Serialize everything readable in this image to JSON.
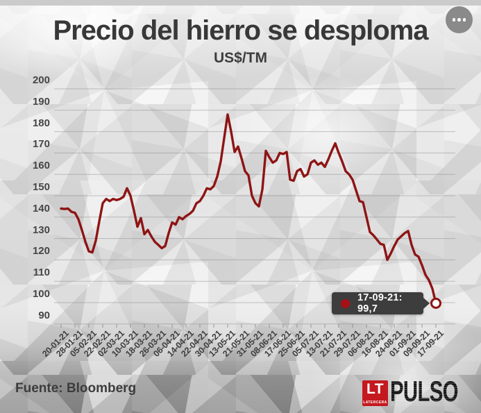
{
  "header": {
    "title": "Precio del hierro se desploma",
    "subtitle": "US$/TM"
  },
  "icons": {
    "menu": "ellipsis"
  },
  "tooltip": {
    "label": "17-09-21: 99,7"
  },
  "footer": {
    "source": "Fuente: Bloomberg",
    "logo_lt": "LT",
    "logo_latercera": "LATERCERA",
    "logo_pulso": "PULSO"
  },
  "chart_data": {
    "type": "line",
    "title": "Precio del hierro se desploma",
    "ylabel": "US$/TM",
    "xlabel": "",
    "grid": true,
    "ylim": [
      90,
      200
    ],
    "y_ticks": [
      200,
      190,
      180,
      170,
      160,
      150,
      140,
      130,
      120,
      110,
      100,
      90
    ],
    "x_labels": [
      "20-01-21",
      "28-01-21",
      "05-02-21",
      "22-02-21",
      "02-03-21",
      "10-03-21",
      "18-03-21",
      "26-03-21",
      "06-04-21",
      "14-04-21",
      "22-04-21",
      "30-04-21",
      "13-05-21",
      "21-05-21",
      "31-05-21",
      "08-06-21",
      "17-06-21",
      "25-06-21",
      "05-07-21",
      "13-07-21",
      "21-07-21",
      "29-07-21",
      "06-08-21",
      "16-08-21",
      "24-08-21",
      "01-09-21",
      "09-09-21",
      "17-09-21"
    ],
    "series": [
      {
        "name": "Precio del hierro (US$/TM)",
        "color": "#8e1414",
        "values": [
          144,
          143.8,
          144,
          142.5,
          142,
          139,
          134,
          128.5,
          124,
          123.5,
          129,
          138,
          146.5,
          148.5,
          147.5,
          148.5,
          148,
          148.5,
          149.5,
          153.5,
          150,
          143,
          135.5,
          139.5,
          132,
          134,
          131,
          128.5,
          127,
          125.5,
          126.5,
          132.5,
          137.5,
          136.5,
          140,
          139,
          140.5,
          141.5,
          143,
          146.5,
          147.5,
          150,
          153.5,
          153,
          154.5,
          159,
          166,
          177,
          188,
          180,
          170.5,
          173,
          167.5,
          161.5,
          159.5,
          150,
          146.5,
          145,
          153,
          171,
          168,
          165.5,
          166.5,
          170,
          169.5,
          170.5,
          157.5,
          157,
          161.5,
          162.5,
          159,
          160,
          165.5,
          166.5,
          164.5,
          165.5,
          163.5,
          167,
          171,
          174.5,
          170,
          166,
          161.5,
          160,
          157.5,
          152.5,
          147.5,
          147,
          140,
          133,
          131.5,
          129.5,
          127.5,
          127,
          120,
          123,
          126.5,
          129.5,
          131,
          132.5,
          133.5,
          127,
          122.5,
          121.5,
          117.5,
          113,
          110.5,
          106.5,
          99.7
        ]
      }
    ],
    "end_marker": {
      "date": "17-09-21",
      "value": 99.7
    },
    "colors": {
      "line": "#8e1414",
      "tooltip_bg": "#3d3d3d",
      "tooltip_dot": "#a81016",
      "logo_red": "#c4191f",
      "grid": "#9a9a9a"
    }
  }
}
